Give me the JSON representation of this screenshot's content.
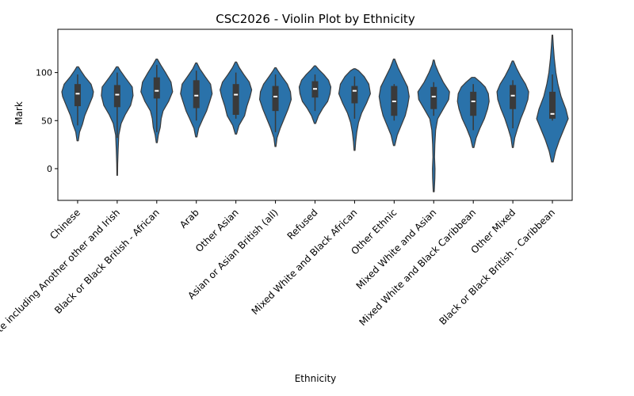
{
  "chart_data": {
    "type": "violin",
    "title": "CSC2026 - Violin Plot by Ethnicity",
    "xlabel": "Ethnicity",
    "ylabel": "Mark",
    "ylim": [
      -33,
      145
    ],
    "yticks": [
      0,
      50,
      100
    ],
    "grid": false,
    "legend": "none",
    "colors": {
      "violin_fill": "#2a72aa",
      "violin_edge": "#3a3a3a",
      "box": "#3a3a3a",
      "median": "#ffffff"
    },
    "categories": [
      "Chinese",
      "White including Another other and Irish",
      "Black or Black British - African",
      "Arab",
      "Other Asian",
      "Asian or Asian British (all)",
      "Refused",
      "Mixed White and Black African",
      "Other Ethnic",
      "Mixed White and Asian",
      "Mixed White and Black Caribbean",
      "Other Mixed",
      "Black or Black British - Caribbean"
    ],
    "violins": [
      {
        "min": 29,
        "max": 106,
        "q1": 65,
        "median": 78,
        "q3": 88,
        "whisker_low": 45,
        "whisker_high": 98,
        "density": [
          [
            29,
            0.04
          ],
          [
            38,
            0.12
          ],
          [
            46,
            0.3
          ],
          [
            55,
            0.45
          ],
          [
            65,
            0.7
          ],
          [
            75,
            0.95
          ],
          [
            80,
            1.0
          ],
          [
            88,
            0.85
          ],
          [
            96,
            0.45
          ],
          [
            102,
            0.2
          ],
          [
            106,
            0.05
          ]
        ]
      },
      {
        "min": -7,
        "max": 106,
        "q1": 64,
        "median": 77,
        "q3": 87,
        "whisker_low": 32,
        "whisker_high": 100,
        "density": [
          [
            -7,
            0.02
          ],
          [
            5,
            0.03
          ],
          [
            20,
            0.06
          ],
          [
            35,
            0.1
          ],
          [
            47,
            0.25
          ],
          [
            56,
            0.5
          ],
          [
            66,
            0.85
          ],
          [
            76,
            1.0
          ],
          [
            85,
            0.95
          ],
          [
            95,
            0.5
          ],
          [
            102,
            0.2
          ],
          [
            106,
            0.05
          ]
        ]
      },
      {
        "min": 27,
        "max": 114,
        "q1": 73,
        "median": 81,
        "q3": 95,
        "whisker_low": 38,
        "whisker_high": 108,
        "density": [
          [
            27,
            0.03
          ],
          [
            35,
            0.1
          ],
          [
            43,
            0.22
          ],
          [
            52,
            0.28
          ],
          [
            60,
            0.4
          ],
          [
            70,
            0.75
          ],
          [
            80,
            1.0
          ],
          [
            90,
            0.9
          ],
          [
            100,
            0.55
          ],
          [
            108,
            0.25
          ],
          [
            114,
            0.04
          ]
        ]
      },
      {
        "min": 33,
        "max": 110,
        "q1": 63,
        "median": 76,
        "q3": 92,
        "whisker_low": 50,
        "whisker_high": 102,
        "density": [
          [
            33,
            0.04
          ],
          [
            42,
            0.15
          ],
          [
            52,
            0.42
          ],
          [
            60,
            0.65
          ],
          [
            70,
            0.85
          ],
          [
            78,
            1.0
          ],
          [
            88,
            0.9
          ],
          [
            96,
            0.55
          ],
          [
            104,
            0.22
          ],
          [
            110,
            0.04
          ]
        ]
      },
      {
        "min": 36,
        "max": 111,
        "q1": 56,
        "median": 77,
        "q3": 88,
        "whisker_low": 52,
        "whisker_high": 100,
        "density": [
          [
            36,
            0.04
          ],
          [
            45,
            0.2
          ],
          [
            55,
            0.55
          ],
          [
            65,
            0.7
          ],
          [
            75,
            0.9
          ],
          [
            82,
            1.0
          ],
          [
            90,
            0.85
          ],
          [
            98,
            0.5
          ],
          [
            105,
            0.22
          ],
          [
            111,
            0.04
          ]
        ]
      },
      {
        "min": 23,
        "max": 105,
        "q1": 60,
        "median": 75,
        "q3": 86,
        "whisker_low": 38,
        "whisker_high": 98,
        "density": [
          [
            23,
            0.03
          ],
          [
            32,
            0.1
          ],
          [
            42,
            0.3
          ],
          [
            52,
            0.55
          ],
          [
            62,
            0.8
          ],
          [
            72,
            1.0
          ],
          [
            80,
            0.95
          ],
          [
            88,
            0.75
          ],
          [
            96,
            0.4
          ],
          [
            102,
            0.15
          ],
          [
            105,
            0.04
          ]
        ]
      },
      {
        "min": 47,
        "max": 107,
        "q1": 74,
        "median": 83,
        "q3": 91,
        "whisker_low": 60,
        "whisker_high": 98,
        "density": [
          [
            47,
            0.04
          ],
          [
            55,
            0.22
          ],
          [
            63,
            0.5
          ],
          [
            70,
            0.8
          ],
          [
            78,
            0.95
          ],
          [
            85,
            1.0
          ],
          [
            92,
            0.85
          ],
          [
            98,
            0.55
          ],
          [
            103,
            0.25
          ],
          [
            107,
            0.04
          ]
        ]
      },
      {
        "min": 19,
        "max": 104,
        "q1": 68,
        "median": 81,
        "q3": 86,
        "whisker_low": 52,
        "whisker_high": 96,
        "density": [
          [
            19,
            0.03
          ],
          [
            28,
            0.07
          ],
          [
            38,
            0.14
          ],
          [
            48,
            0.25
          ],
          [
            58,
            0.45
          ],
          [
            68,
            0.75
          ],
          [
            78,
            1.0
          ],
          [
            88,
            0.9
          ],
          [
            96,
            0.6
          ],
          [
            102,
            0.25
          ],
          [
            104,
            0.05
          ]
        ]
      },
      {
        "min": 24,
        "max": 114,
        "q1": 55,
        "median": 70,
        "q3": 86,
        "whisker_low": 50,
        "whisker_high": 88,
        "density": [
          [
            24,
            0.04
          ],
          [
            35,
            0.2
          ],
          [
            45,
            0.45
          ],
          [
            55,
            0.7
          ],
          [
            65,
            0.85
          ],
          [
            75,
            0.95
          ],
          [
            85,
            0.85
          ],
          [
            95,
            0.55
          ],
          [
            105,
            0.25
          ],
          [
            114,
            0.04
          ]
        ]
      },
      {
        "min": -24,
        "max": 113,
        "q1": 62,
        "median": 75,
        "q3": 85,
        "whisker_low": 55,
        "whisker_high": 90,
        "density": [
          [
            -24,
            0.03
          ],
          [
            -10,
            0.07
          ],
          [
            0,
            0.08
          ],
          [
            12,
            0.05
          ],
          [
            25,
            0.07
          ],
          [
            40,
            0.12
          ],
          [
            52,
            0.25
          ],
          [
            62,
            0.6
          ],
          [
            72,
            0.95
          ],
          [
            80,
            1.0
          ],
          [
            90,
            0.6
          ],
          [
            100,
            0.3
          ],
          [
            108,
            0.1
          ],
          [
            113,
            0.03
          ]
        ]
      },
      {
        "min": 22,
        "max": 95,
        "q1": 55,
        "median": 70,
        "q3": 80,
        "whisker_low": 40,
        "whisker_high": 88,
        "density": [
          [
            22,
            0.04
          ],
          [
            32,
            0.18
          ],
          [
            42,
            0.42
          ],
          [
            52,
            0.7
          ],
          [
            62,
            0.9
          ],
          [
            70,
            1.0
          ],
          [
            78,
            0.95
          ],
          [
            85,
            0.75
          ],
          [
            90,
            0.45
          ],
          [
            95,
            0.1
          ]
        ]
      },
      {
        "min": 22,
        "max": 112,
        "q1": 62,
        "median": 76,
        "q3": 87,
        "whisker_low": 42,
        "whisker_high": 92,
        "density": [
          [
            22,
            0.03
          ],
          [
            32,
            0.12
          ],
          [
            42,
            0.3
          ],
          [
            52,
            0.5
          ],
          [
            62,
            0.75
          ],
          [
            72,
            0.95
          ],
          [
            80,
            1.0
          ],
          [
            88,
            0.8
          ],
          [
            96,
            0.5
          ],
          [
            104,
            0.25
          ],
          [
            112,
            0.04
          ]
        ]
      },
      {
        "min": 7,
        "max": 139,
        "q1": 52,
        "median": 57,
        "q3": 80,
        "whisker_low": 50,
        "whisker_high": 98,
        "density": [
          [
            7,
            0.05
          ],
          [
            18,
            0.2
          ],
          [
            30,
            0.45
          ],
          [
            42,
            0.75
          ],
          [
            52,
            1.0
          ],
          [
            62,
            0.85
          ],
          [
            75,
            0.55
          ],
          [
            88,
            0.35
          ],
          [
            100,
            0.22
          ],
          [
            115,
            0.12
          ],
          [
            128,
            0.06
          ],
          [
            139,
            0.02
          ]
        ]
      }
    ]
  }
}
